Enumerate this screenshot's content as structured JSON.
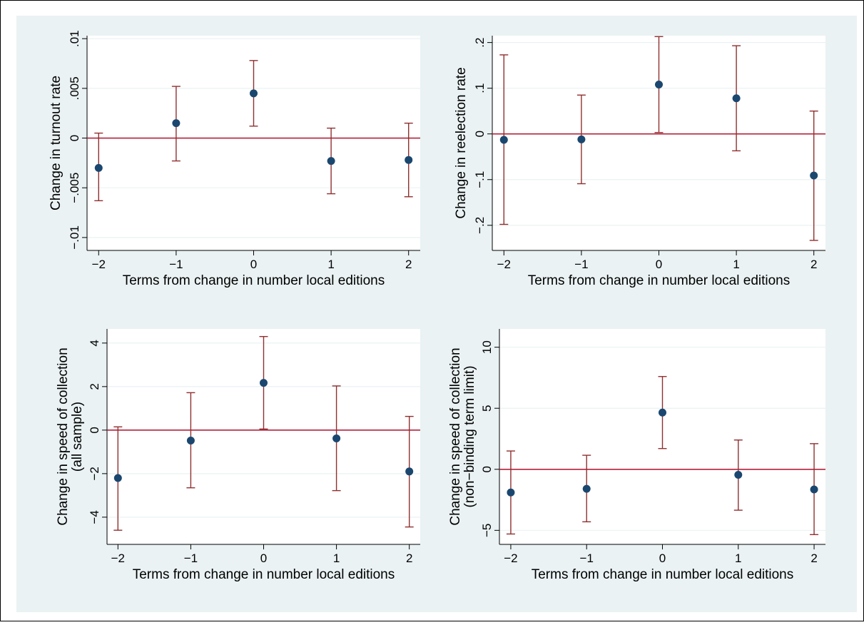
{
  "colors": {
    "background": "#eaf2f3",
    "plot_background": "#ffffff",
    "marker": "#1a476f",
    "ci": "#903030",
    "reference_line": "#b5203a"
  },
  "chart_data": [
    {
      "type": "scatter",
      "error_bars": true,
      "reference_line_y": 0,
      "grid": true,
      "xlabel": "Terms from change in number local editions",
      "ylabel": [
        "Change in turnout rate"
      ],
      "x": [
        -2,
        -1,
        0,
        1,
        2
      ],
      "y": [
        -0.003,
        0.0015,
        0.0045,
        -0.0023,
        -0.0022
      ],
      "ci_low": [
        -0.0063,
        -0.0023,
        0.0012,
        -0.0056,
        -0.0059
      ],
      "ci_high": [
        0.0005,
        0.0052,
        0.0078,
        0.001,
        0.0015
      ],
      "xticks": [
        -2,
        -1,
        0,
        1,
        2
      ],
      "yticks": [
        -0.01,
        -0.005,
        0,
        0.005,
        0.01
      ],
      "yticklabels": [
        "−.01",
        "−.005",
        "0",
        ".005",
        ".01"
      ],
      "xlim": [
        -2.15,
        2.15
      ],
      "ylim": [
        -0.0113,
        0.0103
      ]
    },
    {
      "type": "scatter",
      "error_bars": true,
      "reference_line_y": 0,
      "grid": true,
      "xlabel": "Terms from change in number local editions",
      "ylabel": [
        "Change in reelection rate"
      ],
      "x": [
        -2,
        -1,
        0,
        1,
        2
      ],
      "y": [
        -0.013,
        -0.012,
        0.108,
        0.078,
        -0.091
      ],
      "ci_low": [
        -0.198,
        -0.109,
        0.003,
        -0.037,
        -0.233
      ],
      "ci_high": [
        0.173,
        0.085,
        0.213,
        0.193,
        0.05
      ],
      "xticks": [
        -2,
        -1,
        0,
        1,
        2
      ],
      "yticks": [
        -0.2,
        -0.1,
        0,
        0.1,
        0.2
      ],
      "yticklabels": [
        "−.2",
        "−.1",
        "0",
        ".1",
        ".2"
      ],
      "xlim": [
        -2.15,
        2.15
      ],
      "ylim": [
        -0.255,
        0.215
      ]
    },
    {
      "type": "scatter",
      "error_bars": true,
      "reference_line_y": 0,
      "grid": true,
      "xlabel": "Terms from change in number local editions",
      "ylabel": [
        "Change in speed of collection",
        "(all sample)"
      ],
      "x": [
        -2,
        -1,
        0,
        1,
        2
      ],
      "y": [
        -2.2,
        -0.48,
        2.17,
        -0.38,
        -1.9
      ],
      "ci_low": [
        -4.6,
        -2.65,
        0.05,
        -2.78,
        -4.45
      ],
      "ci_high": [
        0.15,
        1.72,
        4.3,
        2.03,
        0.63
      ],
      "xticks": [
        -2,
        -1,
        0,
        1,
        2
      ],
      "yticks": [
        -4,
        -2,
        0,
        2,
        4
      ],
      "yticklabels": [
        "−4",
        "−2",
        "0",
        "2",
        "4"
      ],
      "xlim": [
        -2.15,
        2.15
      ],
      "ylim": [
        -5.25,
        4.65
      ]
    },
    {
      "type": "scatter",
      "error_bars": true,
      "reference_line_y": 0,
      "grid": true,
      "xlabel": "Terms from change in number local editions",
      "ylabel": [
        "Change in speed of collection",
        "(non−binding term limit)"
      ],
      "x": [
        -2,
        -1,
        0,
        1,
        2
      ],
      "y": [
        -1.9,
        -1.6,
        4.65,
        -0.45,
        -1.65
      ],
      "ci_low": [
        -5.3,
        -4.3,
        1.7,
        -3.35,
        -5.35
      ],
      "ci_high": [
        1.5,
        1.15,
        7.6,
        2.4,
        2.1
      ],
      "xticks": [
        -2,
        -1,
        0,
        1,
        2
      ],
      "yticks": [
        -5,
        0,
        5,
        10
      ],
      "yticklabels": [
        "−5",
        "0",
        "5",
        "10"
      ],
      "xlim": [
        -2.15,
        2.15
      ],
      "ylim": [
        -6.15,
        11.5
      ]
    }
  ]
}
